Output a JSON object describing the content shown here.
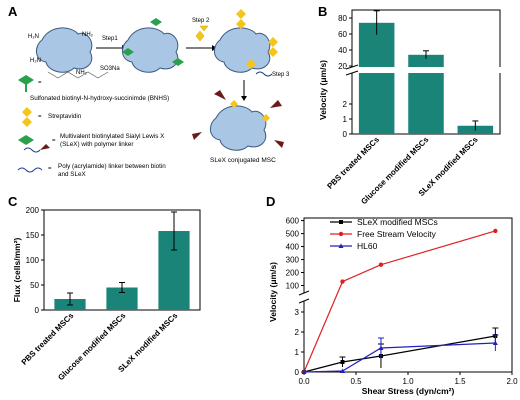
{
  "panels": {
    "a": "A",
    "b": "B",
    "c": "C",
    "d": "D"
  },
  "schematic": {
    "step1": "Step1",
    "step2": "Step 2",
    "step3": "Step 3",
    "legend_bnhs": "Sulfonated biotinyl-N-hydroxy-succinimde (BNHS)",
    "legend_streptavidin": "Streptavidin",
    "legend_slex_line1": "Multivalent biotinylated Sialyl Lewis X",
    "legend_slex_line2": "(SLeX) with polymer linker",
    "legend_linker_line1": "Poly (acrylamide) linker between biotin",
    "legend_linker_line2": "and SLeX",
    "product": "SLeX conjugated MSC",
    "bnhs_so3na": "SO3Na",
    "eq": "="
  },
  "chart_data": [
    {
      "panel": "B",
      "type": "bar",
      "ylabel": "Velocity (μm/s)",
      "categories": [
        "PBS treated MSCs",
        "Glucose modified MSCs",
        "SLeX modified MSCs"
      ],
      "values": [
        74,
        34,
        0.55
      ],
      "errors": [
        15,
        5,
        0.32
      ],
      "bar_color": "#1a8479",
      "axis_break": {
        "lower_range": [
          0,
          4
        ],
        "upper_range": [
          20,
          90
        ]
      },
      "yticks_lower": [
        "0",
        "1",
        "2"
      ],
      "yticks_upper": [
        "20",
        "40",
        "60",
        "80"
      ]
    },
    {
      "panel": "C",
      "type": "bar",
      "ylabel": "Flux (cells/mm²)",
      "categories": [
        "PBS treated MSCs",
        "Glucose modified MSCs",
        "SLeX modified MSCs"
      ],
      "values": [
        22,
        45,
        158
      ],
      "errors": [
        12,
        10,
        38
      ],
      "ylim": [
        0,
        200
      ],
      "yticks": [
        "0",
        "50",
        "100",
        "150",
        "200"
      ],
      "bar_color": "#1a8479"
    },
    {
      "panel": "D",
      "type": "line",
      "xlabel": "Shear Stress (dyn/cm²)",
      "ylabel": "Velocity (μm/s)",
      "xlim": [
        0,
        2.0
      ],
      "xticks": [
        "0.0",
        "0.5",
        "1.0",
        "1.5",
        "2.0"
      ],
      "yticks_lower": [
        "0",
        "1",
        "2",
        "3"
      ],
      "yticks_upper": [
        "100",
        "200",
        "300",
        "400",
        "500",
        "600"
      ],
      "axis_break": {
        "lower_range": [
          0,
          3.5
        ],
        "upper_range": [
          50,
          620
        ]
      },
      "legend_position": "top-right",
      "series": [
        {
          "name": "SLeX modified MSCs",
          "color": "#000000",
          "x": [
            0,
            0.37,
            0.74,
            1.84
          ],
          "y": [
            0,
            0.5,
            0.8,
            1.8
          ],
          "err": [
            0,
            0.25,
            0.6,
            0.4
          ]
        },
        {
          "name": "Free Stream Velocity",
          "color": "#e02020",
          "x": [
            0,
            0.37,
            0.74,
            1.84
          ],
          "y": [
            0,
            130,
            260,
            520
          ],
          "err": [
            0,
            0,
            0,
            0
          ]
        },
        {
          "name": "HL60",
          "color": "#2020c0",
          "x": [
            0,
            0.37,
            0.74,
            1.84
          ],
          "y": [
            0,
            0.05,
            1.2,
            1.45
          ],
          "err": [
            0,
            0,
            0.5,
            0.4
          ]
        }
      ]
    }
  ]
}
